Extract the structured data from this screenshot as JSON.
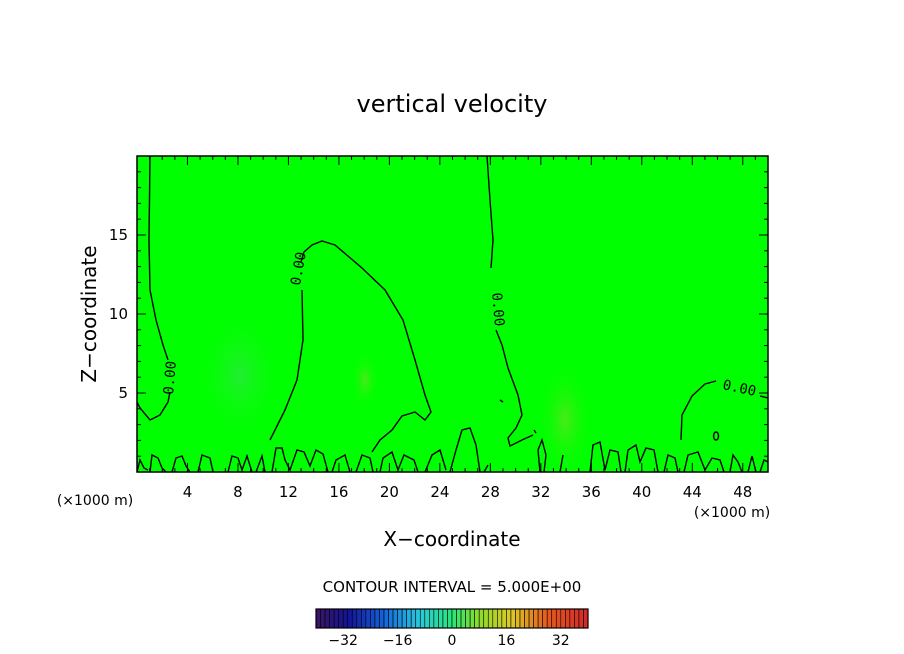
{
  "chart_data": {
    "type": "heatmap",
    "title": "vertical velocity",
    "xlabel": "X−coordinate",
    "ylabel": "Z−coordinate",
    "x_units": "(×1000 m)",
    "xlim": [
      0,
      50
    ],
    "ylim": [
      0,
      20
    ],
    "x_ticks": [
      4,
      8,
      12,
      16,
      20,
      24,
      28,
      32,
      36,
      40,
      44,
      48
    ],
    "y_ticks": [
      5,
      10,
      15
    ],
    "contour_label": "0.00",
    "contour_interval_text": "CONTOUR INTERVAL = 5.000E+00",
    "colorbar": {
      "range": [
        -40,
        40
      ],
      "ticks": [
        "−32",
        "−16",
        "0",
        "16",
        "32"
      ],
      "tick_values": [
        -32,
        -16,
        0,
        16,
        32
      ]
    },
    "background_color": "#00ff00"
  }
}
